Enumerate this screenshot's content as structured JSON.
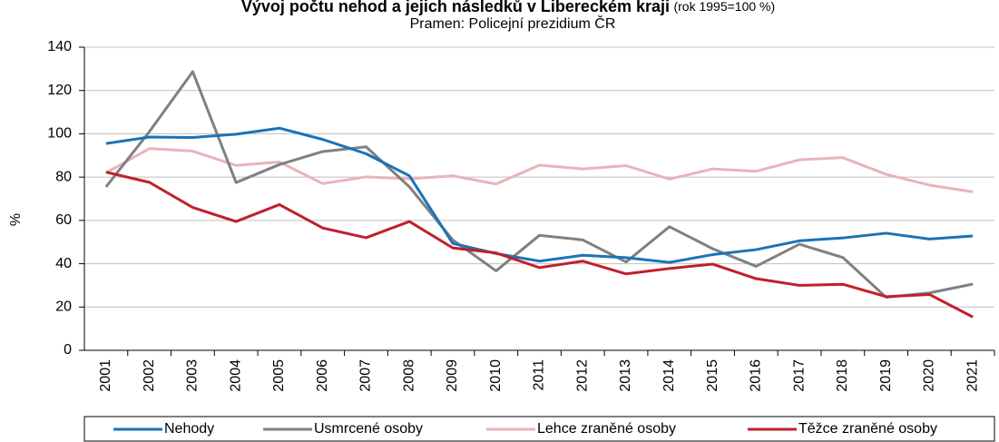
{
  "chart_data": {
    "type": "line",
    "title": "Vývoj počtu nehod a jejich následků v Libereckém kraji",
    "title_note": "(rok 1995=100 %)",
    "subtitle": "Pramen: Policejní prezidium ČR",
    "y_label": "%",
    "categories": [
      "2001",
      "2002",
      "2003",
      "2004",
      "2005",
      "2006",
      "2007",
      "2008",
      "2009",
      "2010",
      "2011",
      "2012",
      "2013",
      "2014",
      "2015",
      "2016",
      "2017",
      "2018",
      "2019",
      "2020",
      "2021"
    ],
    "series": [
      {
        "name": "Nehody",
        "color": "#1a73b8",
        "values": [
          95.5,
          98.5,
          98.3,
          99.8,
          102.6,
          97.4,
          90.8,
          80.6,
          49.4,
          44.7,
          41.2,
          43.9,
          42.8,
          40.6,
          44.2,
          46.5,
          50.6,
          51.9,
          54.1,
          51.4,
          52.8
        ]
      },
      {
        "name": "Usmrcené osoby",
        "color": "#808080",
        "values": [
          75.5,
          101,
          128.7,
          77.5,
          85.8,
          91.8,
          94.0,
          75.5,
          51.0,
          36.7,
          53.1,
          51.0,
          40.8,
          57.1,
          46.9,
          38.8,
          49.0,
          42.9,
          24.5,
          26.5,
          30.6
        ]
      },
      {
        "name": "Lehce zraněné osoby",
        "color": "#e8b4b8",
        "values": [
          82.0,
          93.2,
          92.0,
          85.4,
          87.0,
          77.0,
          80.1,
          79.2,
          80.6,
          76.8,
          85.5,
          83.8,
          85.3,
          79.1,
          83.8,
          82.7,
          88.0,
          89.0,
          81.3,
          76.3,
          73.2
        ]
      },
      {
        "name": "Těžce zraněné osoby",
        "color": "#c0202c",
        "values": [
          82.3,
          77.6,
          66.0,
          59.5,
          67.3,
          56.5,
          52.0,
          59.5,
          47.3,
          45.0,
          38.2,
          41.2,
          35.3,
          37.8,
          39.8,
          33.1,
          30.0,
          30.5,
          24.8,
          25.8,
          15.4
        ]
      }
    ],
    "ylim": [
      0,
      140
    ],
    "yticks": [
      0,
      20,
      40,
      60,
      80,
      100,
      120,
      140
    ],
    "grid": true,
    "legend": "bottom"
  }
}
